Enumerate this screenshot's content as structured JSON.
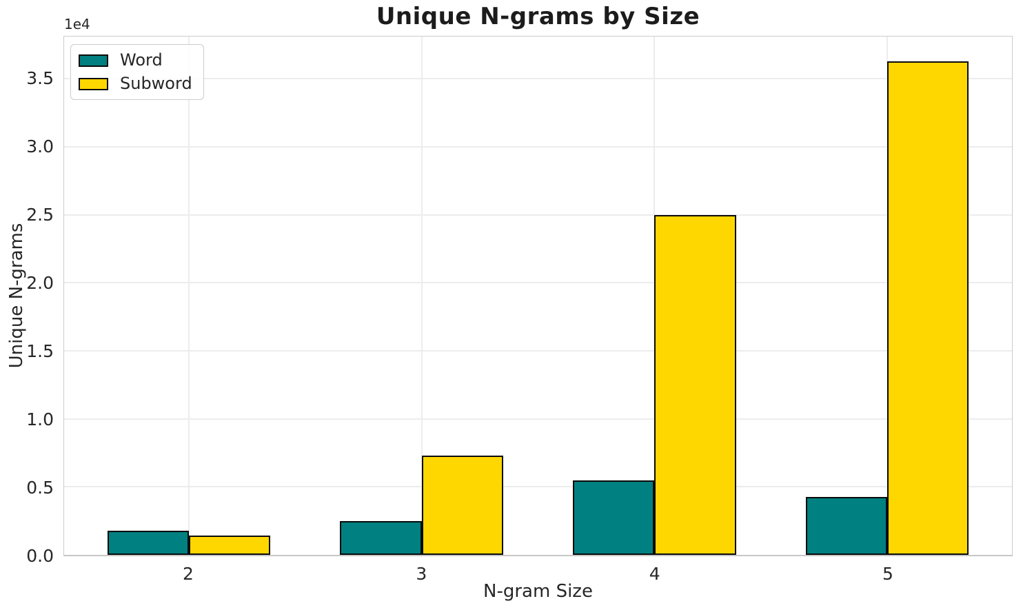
{
  "chart_data": {
    "type": "bar",
    "title": "Unique N-grams by Size",
    "xlabel": "N-gram Size",
    "ylabel": "Unique N-grams",
    "y_offset_label": "1e4",
    "categories": [
      "2",
      "3",
      "4",
      "5"
    ],
    "series": [
      {
        "name": "Word",
        "color": "#008080",
        "values": [
          1800,
          2500,
          5450,
          4250
        ]
      },
      {
        "name": "Subword",
        "color": "#FFD700",
        "values": [
          1400,
          7300,
          25000,
          36300
        ]
      }
    ],
    "bar_edge_color": "#0a0a0a",
    "bar_width_fraction": 0.35,
    "xlim": [
      -0.535,
      3.535
    ],
    "ylim": [
      0,
      38115
    ],
    "yticks": [
      {
        "value": 0,
        "label": "0.0"
      },
      {
        "value": 5000,
        "label": "0.5"
      },
      {
        "value": 10000,
        "label": "1.0"
      },
      {
        "value": 15000,
        "label": "1.5"
      },
      {
        "value": 20000,
        "label": "2.0"
      },
      {
        "value": 25000,
        "label": "2.5"
      },
      {
        "value": 30000,
        "label": "3.0"
      },
      {
        "value": 35000,
        "label": "3.5"
      }
    ],
    "grid": true,
    "legend_position": "upper left"
  },
  "colors": {
    "grid": "#ececec",
    "spine": "#cccccc",
    "text": "#262626"
  }
}
